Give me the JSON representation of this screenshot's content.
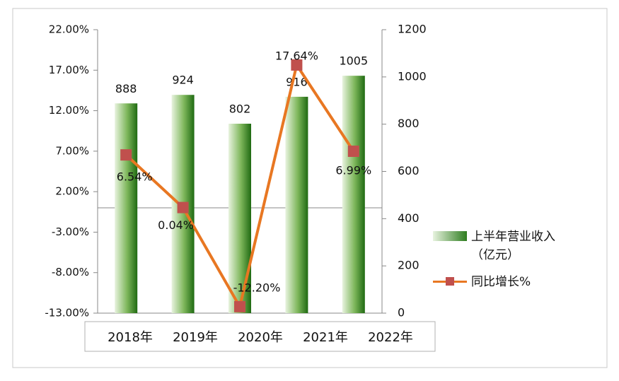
{
  "chart_data": {
    "type": "bar-line",
    "categories": [
      "2018年",
      "2019年",
      "2020年",
      "2021年",
      "2022年"
    ],
    "series": [
      {
        "name": "上半年营业收入（亿元）",
        "type": "bar",
        "axis": "y2",
        "color": "#2e7d1f",
        "values": [
          888,
          924,
          802,
          916,
          1005
        ]
      },
      {
        "name": "同比增长%",
        "type": "line",
        "color": "#e87722",
        "marker_color": "#c0504d",
        "values": [
          6.54,
          0.04,
          -12.2,
          17.64,
          6.99
        ],
        "value_labels": [
          "6.54%",
          "0.04%",
          "-12.20%",
          "17.64%",
          "6.99%"
        ]
      }
    ],
    "ylim": [
      -13,
      22
    ],
    "yticks": [
      {
        "value": -13,
        "label": "-13.00%"
      },
      {
        "value": -8,
        "label": "-8.00%"
      },
      {
        "value": -3,
        "label": "-3.00%"
      },
      {
        "value": 2,
        "label": "2.00%"
      },
      {
        "value": 7,
        "label": "7.00%"
      },
      {
        "value": 12,
        "label": "12.00%"
      },
      {
        "value": 17,
        "label": "17.00%"
      },
      {
        "value": 22,
        "label": "22.00%"
      }
    ],
    "y2lim": [
      0,
      1200
    ],
    "y2ticks": [
      0,
      200,
      400,
      600,
      800,
      1000,
      1200
    ],
    "legend": "right"
  }
}
